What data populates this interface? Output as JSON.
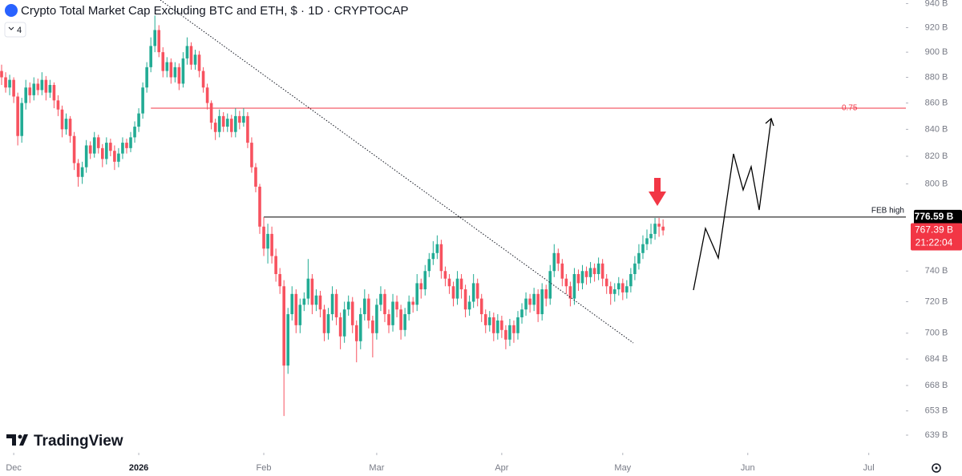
{
  "chart_data": {
    "type": "candlestick",
    "title": "Crypto Total Market Cap Excluding BTC and ETH, $ · 1D · CRYPTOCAP",
    "indicator": "4",
    "brand": "TradingView",
    "log_scale": true,
    "up_color": "#22ab94",
    "down_color": "#f7525f",
    "ylim": [
      629,
      943
    ],
    "yticks": [
      {
        "value": 940,
        "label": "940 B"
      },
      {
        "value": 920,
        "label": "920 B"
      },
      {
        "value": 900,
        "label": "900 B"
      },
      {
        "value": 880,
        "label": "880 B"
      },
      {
        "value": 860,
        "label": "860 B"
      },
      {
        "value": 840,
        "label": "840 B"
      },
      {
        "value": 820,
        "label": "820 B"
      },
      {
        "value": 800,
        "label": "800 B"
      },
      {
        "value": 740,
        "label": "740 B"
      },
      {
        "value": 720,
        "label": "720 B"
      },
      {
        "value": 700,
        "label": "700 B"
      },
      {
        "value": 684,
        "label": "684 B"
      },
      {
        "value": 668,
        "label": "668 B"
      },
      {
        "value": 653,
        "label": "653 B"
      },
      {
        "value": 639,
        "label": "639 B"
      }
    ],
    "xlim": [
      -0.4,
      224.2
    ],
    "xticks": [
      {
        "value": 3,
        "label": "Dec"
      },
      {
        "value": 34,
        "label": "2026"
      },
      {
        "value": 65,
        "label": "Feb"
      },
      {
        "value": 93,
        "label": "Mar"
      },
      {
        "value": 124,
        "label": "Apr"
      },
      {
        "value": 154,
        "label": "May"
      },
      {
        "value": 185,
        "label": "Jun"
      },
      {
        "value": 215,
        "label": "Jul"
      }
    ],
    "levels": [
      {
        "name": "0.75",
        "value": 856,
        "color": "#f23645",
        "start": 37
      },
      {
        "name": "FEB high",
        "value": 776.59,
        "label": "776.59 B",
        "color": "#000000",
        "start": 65
      }
    ],
    "last_price": {
      "value": 767.39,
      "label": "767.39 B",
      "countdown": "21:22:04",
      "color": "#f23645"
    },
    "candles": [
      [
        885,
        890,
        874,
        880
      ],
      [
        880,
        884,
        868,
        872
      ],
      [
        872,
        882,
        866,
        878
      ],
      [
        878,
        880,
        860,
        865
      ],
      [
        865,
        868,
        828,
        835
      ],
      [
        835,
        864,
        830,
        860
      ],
      [
        860,
        878,
        855,
        872
      ],
      [
        872,
        876,
        860,
        866
      ],
      [
        866,
        880,
        862,
        875
      ],
      [
        875,
        879,
        866,
        870
      ],
      [
        870,
        884,
        866,
        878
      ],
      [
        878,
        881,
        862,
        868
      ],
      [
        868,
        878,
        864,
        874
      ],
      [
        874,
        876,
        856,
        862
      ],
      [
        862,
        866,
        850,
        855
      ],
      [
        855,
        858,
        834,
        840
      ],
      [
        840,
        852,
        836,
        848
      ],
      [
        848,
        850,
        830,
        835
      ],
      [
        835,
        838,
        810,
        815
      ],
      [
        815,
        818,
        798,
        805
      ],
      [
        805,
        816,
        800,
        812
      ],
      [
        812,
        832,
        808,
        828
      ],
      [
        828,
        831,
        818,
        822
      ],
      [
        822,
        838,
        819,
        834
      ],
      [
        834,
        836,
        822,
        826
      ],
      [
        826,
        829,
        812,
        818
      ],
      [
        818,
        834,
        814,
        830
      ],
      [
        830,
        833,
        820,
        824
      ],
      [
        824,
        828,
        810,
        816
      ],
      [
        816,
        826,
        812,
        822
      ],
      [
        822,
        834,
        818,
        830
      ],
      [
        830,
        833,
        822,
        826
      ],
      [
        826,
        838,
        823,
        834
      ],
      [
        834,
        846,
        830,
        842
      ],
      [
        842,
        856,
        838,
        852
      ],
      [
        852,
        876,
        848,
        872
      ],
      [
        872,
        892,
        868,
        888
      ],
      [
        888,
        912,
        884,
        905
      ],
      [
        905,
        930,
        900,
        918
      ],
      [
        918,
        922,
        896,
        900
      ],
      [
        900,
        904,
        880,
        885
      ],
      [
        885,
        896,
        880,
        892
      ],
      [
        892,
        895,
        875,
        880
      ],
      [
        880,
        892,
        876,
        888
      ],
      [
        888,
        891,
        870,
        875
      ],
      [
        875,
        900,
        872,
        895
      ],
      [
        895,
        912,
        890,
        905
      ],
      [
        905,
        908,
        886,
        890
      ],
      [
        890,
        902,
        886,
        898
      ],
      [
        898,
        901,
        880,
        885
      ],
      [
        885,
        888,
        868,
        872
      ],
      [
        872,
        875,
        855,
        860
      ],
      [
        860,
        862,
        840,
        845
      ],
      [
        845,
        848,
        832,
        838
      ],
      [
        838,
        855,
        834,
        850
      ],
      [
        850,
        853,
        838,
        842
      ],
      [
        842,
        852,
        838,
        848
      ],
      [
        848,
        851,
        834,
        838
      ],
      [
        838,
        856,
        834,
        850
      ],
      [
        850,
        854,
        840,
        845
      ],
      [
        845,
        856,
        842,
        850
      ],
      [
        850,
        853,
        826,
        830
      ],
      [
        830,
        834,
        808,
        812
      ],
      [
        812,
        815,
        794,
        798
      ],
      [
        798,
        800,
        765,
        770
      ],
      [
        770,
        776.59,
        750,
        755
      ],
      [
        755,
        772,
        745,
        765
      ],
      [
        765,
        770,
        745,
        750
      ],
      [
        750,
        755,
        733,
        738
      ],
      [
        738,
        742,
        725,
        730
      ],
      [
        730,
        734,
        650,
        680
      ],
      [
        680,
        716,
        675,
        712
      ],
      [
        712,
        730,
        708,
        725
      ],
      [
        725,
        728,
        700,
        705
      ],
      [
        705,
        722,
        700,
        718
      ],
      [
        718,
        726,
        714,
        722
      ],
      [
        722,
        748,
        718,
        735
      ],
      [
        735,
        738,
        712,
        718
      ],
      [
        718,
        728,
        714,
        724
      ],
      [
        724,
        727,
        710,
        715
      ],
      [
        715,
        718,
        695,
        700
      ],
      [
        700,
        716,
        696,
        712
      ],
      [
        712,
        730,
        708,
        725
      ],
      [
        725,
        728,
        705,
        710
      ],
      [
        710,
        713,
        690,
        698
      ],
      [
        698,
        720,
        694,
        715
      ],
      [
        715,
        724,
        711,
        720
      ],
      [
        720,
        723,
        700,
        705
      ],
      [
        705,
        708,
        682,
        695
      ],
      [
        695,
        716,
        690,
        712
      ],
      [
        712,
        728,
        708,
        722
      ],
      [
        722,
        725,
        703,
        708
      ],
      [
        708,
        711,
        685,
        700
      ],
      [
        700,
        722,
        696,
        718
      ],
      [
        718,
        730,
        714,
        725
      ],
      [
        725,
        728,
        707,
        712
      ],
      [
        712,
        715,
        700,
        705
      ],
      [
        705,
        725,
        701,
        720
      ],
      [
        720,
        724,
        710,
        715
      ],
      [
        715,
        718,
        696,
        702
      ],
      [
        702,
        716,
        698,
        712
      ],
      [
        712,
        724,
        708,
        720
      ],
      [
        720,
        723,
        713,
        718
      ],
      [
        718,
        738,
        714,
        732
      ],
      [
        732,
        735,
        722,
        728
      ],
      [
        728,
        744,
        724,
        740
      ],
      [
        740,
        752,
        736,
        748
      ],
      [
        748,
        760,
        744,
        752
      ],
      [
        752,
        764,
        748,
        758
      ],
      [
        758,
        761,
        735,
        740
      ],
      [
        740,
        743,
        730,
        735
      ],
      [
        735,
        738,
        725,
        730
      ],
      [
        730,
        733,
        717,
        722
      ],
      [
        722,
        740,
        718,
        735
      ],
      [
        735,
        738,
        722,
        728
      ],
      [
        728,
        731,
        710,
        715
      ],
      [
        715,
        724,
        711,
        720
      ],
      [
        720,
        738,
        716,
        732
      ],
      [
        732,
        735,
        717,
        722
      ],
      [
        722,
        725,
        707,
        712
      ],
      [
        712,
        715,
        700,
        705
      ],
      [
        705,
        714,
        701,
        710
      ],
      [
        710,
        713,
        695,
        700
      ],
      [
        700,
        712,
        696,
        708
      ],
      [
        708,
        711,
        697,
        702
      ],
      [
        702,
        705,
        690,
        696
      ],
      [
        696,
        709,
        692,
        705
      ],
      [
        705,
        708,
        694,
        700
      ],
      [
        700,
        714,
        696,
        710
      ],
      [
        710,
        719,
        706,
        715
      ],
      [
        715,
        726,
        711,
        722
      ],
      [
        722,
        725,
        713,
        718
      ],
      [
        718,
        729,
        714,
        725
      ],
      [
        725,
        728,
        707,
        712
      ],
      [
        712,
        732,
        708,
        728
      ],
      [
        728,
        731,
        717,
        722
      ],
      [
        722,
        744,
        718,
        740
      ],
      [
        740,
        758,
        736,
        752
      ],
      [
        752,
        755,
        740,
        745
      ],
      [
        745,
        748,
        730,
        735
      ],
      [
        735,
        738,
        725,
        730
      ],
      [
        730,
        733,
        717,
        722
      ],
      [
        722,
        742,
        718,
        738
      ],
      [
        738,
        741,
        727,
        732
      ],
      [
        732,
        744,
        728,
        740
      ],
      [
        740,
        743,
        731,
        736
      ],
      [
        736,
        746,
        732,
        742
      ],
      [
        742,
        745,
        733,
        738
      ],
      [
        738,
        749,
        734,
        745
      ],
      [
        745,
        748,
        730,
        735
      ],
      [
        735,
        738,
        725,
        730
      ],
      [
        730,
        733,
        718,
        725
      ],
      [
        725,
        732,
        720,
        728
      ],
      [
        728,
        736,
        724,
        732
      ],
      [
        732,
        735,
        721,
        726
      ],
      [
        726,
        734,
        722,
        730
      ],
      [
        730,
        742,
        726,
        738
      ],
      [
        738,
        750,
        734,
        745
      ],
      [
        745,
        758,
        741,
        752
      ],
      [
        752,
        764,
        748,
        758
      ],
      [
        758,
        768,
        754,
        762
      ],
      [
        762,
        772,
        758,
        765
      ],
      [
        765,
        776,
        761,
        772
      ],
      [
        772,
        776,
        763,
        770
      ],
      [
        770,
        775,
        764,
        767.39
      ]
    ]
  }
}
